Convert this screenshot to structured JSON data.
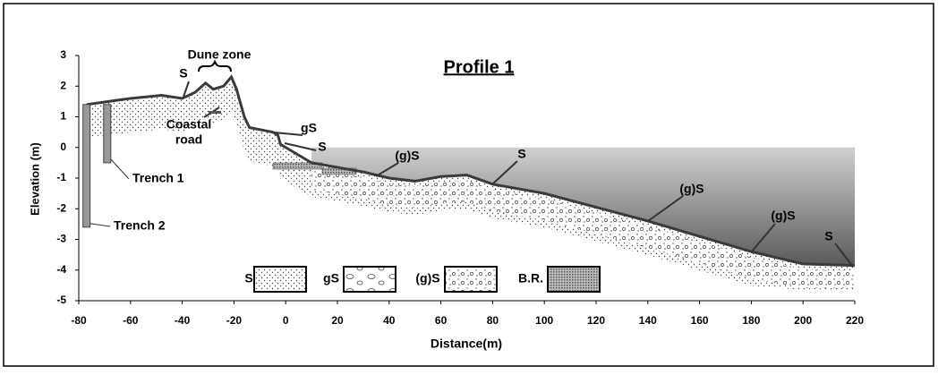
{
  "chart_data": {
    "type": "line",
    "title": "Profile 1",
    "x_label": "Distance(m)",
    "y_label": "Elevation (m)",
    "xlim": [
      -80,
      220
    ],
    "ylim": [
      -5,
      3
    ],
    "xticks": [
      -80,
      -60,
      -40,
      -20,
      0,
      20,
      40,
      60,
      80,
      100,
      120,
      140,
      160,
      180,
      200,
      220
    ],
    "yticks": [
      -5,
      -4,
      -3,
      -2,
      -1,
      0,
      1,
      2,
      3
    ],
    "x": [
      -77,
      -60,
      -48,
      -40,
      -35,
      -31,
      -28,
      -24,
      -21,
      -19,
      -16,
      -14,
      -8,
      -5,
      -3,
      -2,
      0,
      10,
      30,
      40,
      50,
      60,
      70,
      80,
      100,
      140,
      180,
      200,
      220
    ],
    "series": [
      {
        "name": "Profile 1",
        "color": "#3a3a3a",
        "values": [
          1.4,
          1.6,
          1.7,
          1.6,
          1.8,
          2.1,
          1.9,
          2.0,
          2.3,
          1.9,
          1.0,
          0.65,
          0.55,
          0.5,
          0.4,
          0.1,
          0,
          -0.5,
          -0.8,
          -1.0,
          -1.1,
          -0.95,
          -0.9,
          -1.2,
          -1.5,
          -2.4,
          -3.4,
          -3.8,
          -3.85
        ]
      }
    ],
    "trenches": [
      {
        "name": "Trench 1",
        "x": -69,
        "top": 1.4,
        "bottom": -0.5
      },
      {
        "name": "Trench 2",
        "x": -77,
        "top": 1.4,
        "bottom": -2.6
      }
    ],
    "annotations": [
      "Dune zone",
      "S",
      "Coastal",
      "road",
      "gS",
      "S",
      "(g)S",
      "S",
      "(g)S",
      "(g)S",
      "S"
    ],
    "legend": [
      "S",
      "gS",
      "(g)S",
      "B.R."
    ]
  }
}
